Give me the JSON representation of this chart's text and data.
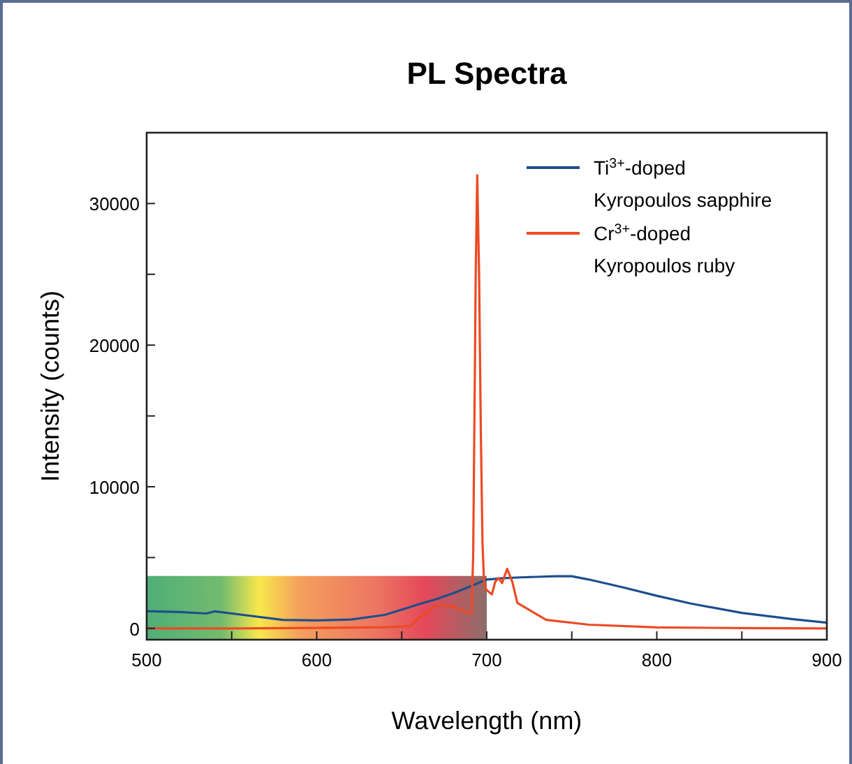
{
  "chart_data": {
    "type": "line",
    "title": "PL Spectra",
    "xlabel": "Wavelength (nm)",
    "ylabel": "Intensity (counts)",
    "xlim": [
      500,
      900
    ],
    "xticks": [
      500,
      {
        "value": 550,
        "label": null
      },
      600,
      {
        "value": 650,
        "label": null
      },
      700,
      {
        "value": 750,
        "label": null
      },
      800,
      {
        "value": 850,
        "label": null
      },
      900
    ],
    "ylim": [
      -800,
      35000
    ],
    "yticks": [
      0,
      {
        "value": 5000,
        "label": null
      },
      10000,
      {
        "value": 15000,
        "label": null
      },
      20000,
      {
        "value": 25000,
        "label": null
      },
      30000
    ],
    "legend": "top right",
    "grid": false,
    "marker": "none",
    "line_style": "solid",
    "series": [
      {
        "name": "Ti$^{3+}$-doped Kyropoulos sapphire",
        "color": "#1d4f8c",
        "x": [
          500,
          520,
          535,
          540,
          560,
          580,
          600,
          620,
          640,
          650,
          660,
          670,
          680,
          690,
          700,
          710,
          720,
          740,
          750,
          760,
          780,
          800,
          820,
          850,
          880,
          900
        ],
        "values": [
          1220,
          1150,
          1050,
          1200,
          900,
          600,
          560,
          620,
          950,
          1320,
          1700,
          2050,
          2470,
          2950,
          3450,
          3550,
          3600,
          3680,
          3680,
          3450,
          2900,
          2300,
          1750,
          1090,
          650,
          400
        ]
      },
      {
        "name": "Cr$^{3+}$-doped Kyropoulos ruby",
        "color": "#ec4a24",
        "x": [
          500,
          550,
          600,
          640,
          655,
          660,
          665,
          670,
          675,
          680,
          685,
          690,
          691,
          692,
          693,
          693.5,
          694.4,
          695.5,
          696.5,
          697.5,
          698.5,
          700,
          703,
          705,
          707,
          709,
          712,
          715,
          718,
          725,
          735,
          760,
          800,
          850,
          900
        ],
        "values": [
          0,
          0,
          30,
          80,
          160,
          720,
          1100,
          1650,
          1620,
          1550,
          1300,
          1050,
          1100,
          5000,
          18000,
          25000,
          32000,
          25000,
          14000,
          6000,
          3000,
          2700,
          2400,
          3300,
          3550,
          3200,
          4200,
          3300,
          1800,
          1300,
          600,
          260,
          70,
          20,
          0
        ]
      }
    ]
  }
}
